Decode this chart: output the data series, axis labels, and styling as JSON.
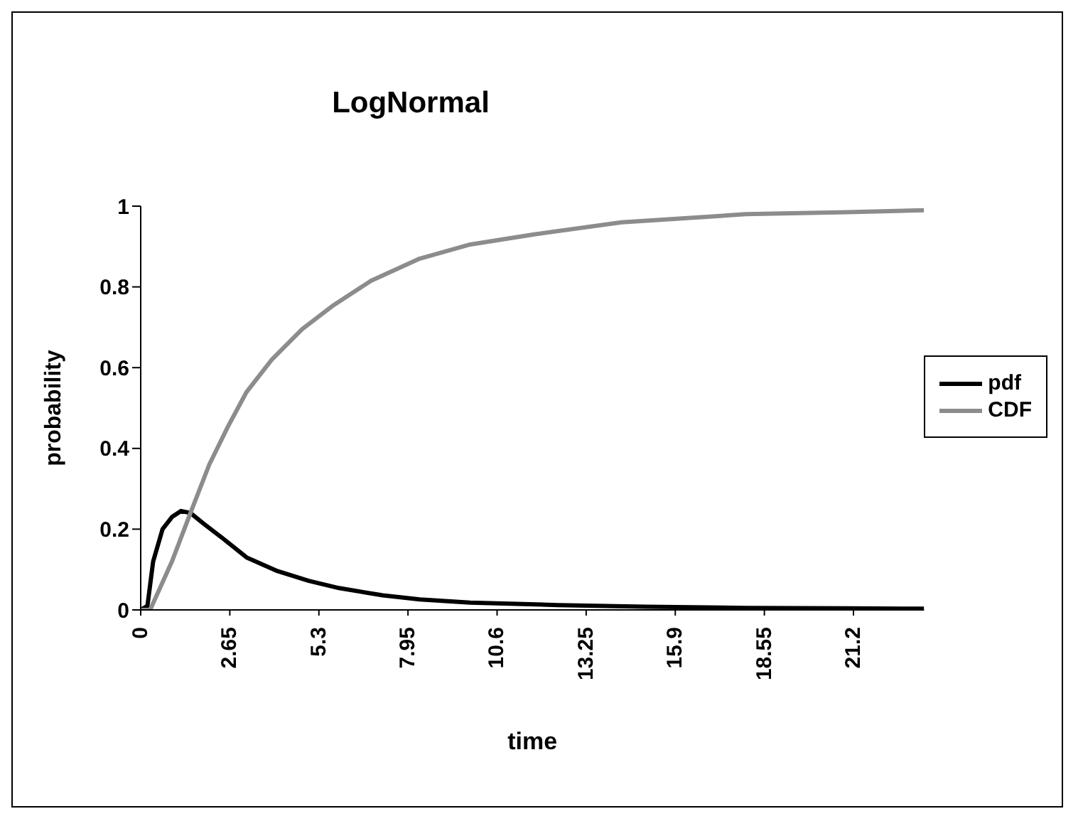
{
  "chart_data": {
    "type": "line",
    "title": "LogNormal",
    "xlabel": "time",
    "ylabel": "probability",
    "xlim": [
      0,
      23.3
    ],
    "xticks": [
      0,
      2.65,
      5.3,
      7.95,
      10.6,
      13.25,
      15.9,
      18.55,
      21.2
    ],
    "ylim": [
      0,
      1
    ],
    "yticks": [
      0,
      0.2,
      0.4,
      0.6,
      0.8,
      1
    ],
    "grid": false,
    "legend": "right",
    "marker": "none",
    "series": [
      {
        "name": "pdf",
        "color": "#000000",
        "x": [
          0,
          0.2,
          0.37,
          0.65,
          0.93,
          1.2,
          1.48,
          1.85,
          2.4,
          3.15,
          4.07,
          5,
          5.9,
          7.2,
          8.3,
          9.8,
          12.4,
          15,
          18,
          21,
          23.3
        ],
        "values": [
          0,
          0.01,
          0.12,
          0.2,
          0.23,
          0.245,
          0.24,
          0.215,
          0.18,
          0.13,
          0.096,
          0.072,
          0.054,
          0.036,
          0.026,
          0.018,
          0.012,
          0.008,
          0.005,
          0.004,
          0.003
        ]
      },
      {
        "name": "CDF",
        "color": "#8c8c8c",
        "x": [
          0,
          0.28,
          0.93,
          1.48,
          2.04,
          2.6,
          3.15,
          3.9,
          4.8,
          5.74,
          6.85,
          8.3,
          9.8,
          11.7,
          14.3,
          18,
          21,
          23.3
        ],
        "values": [
          0,
          0,
          0.12,
          0.24,
          0.36,
          0.455,
          0.54,
          0.62,
          0.695,
          0.755,
          0.815,
          0.87,
          0.905,
          0.93,
          0.96,
          0.98,
          0.985,
          0.99
        ]
      }
    ]
  }
}
